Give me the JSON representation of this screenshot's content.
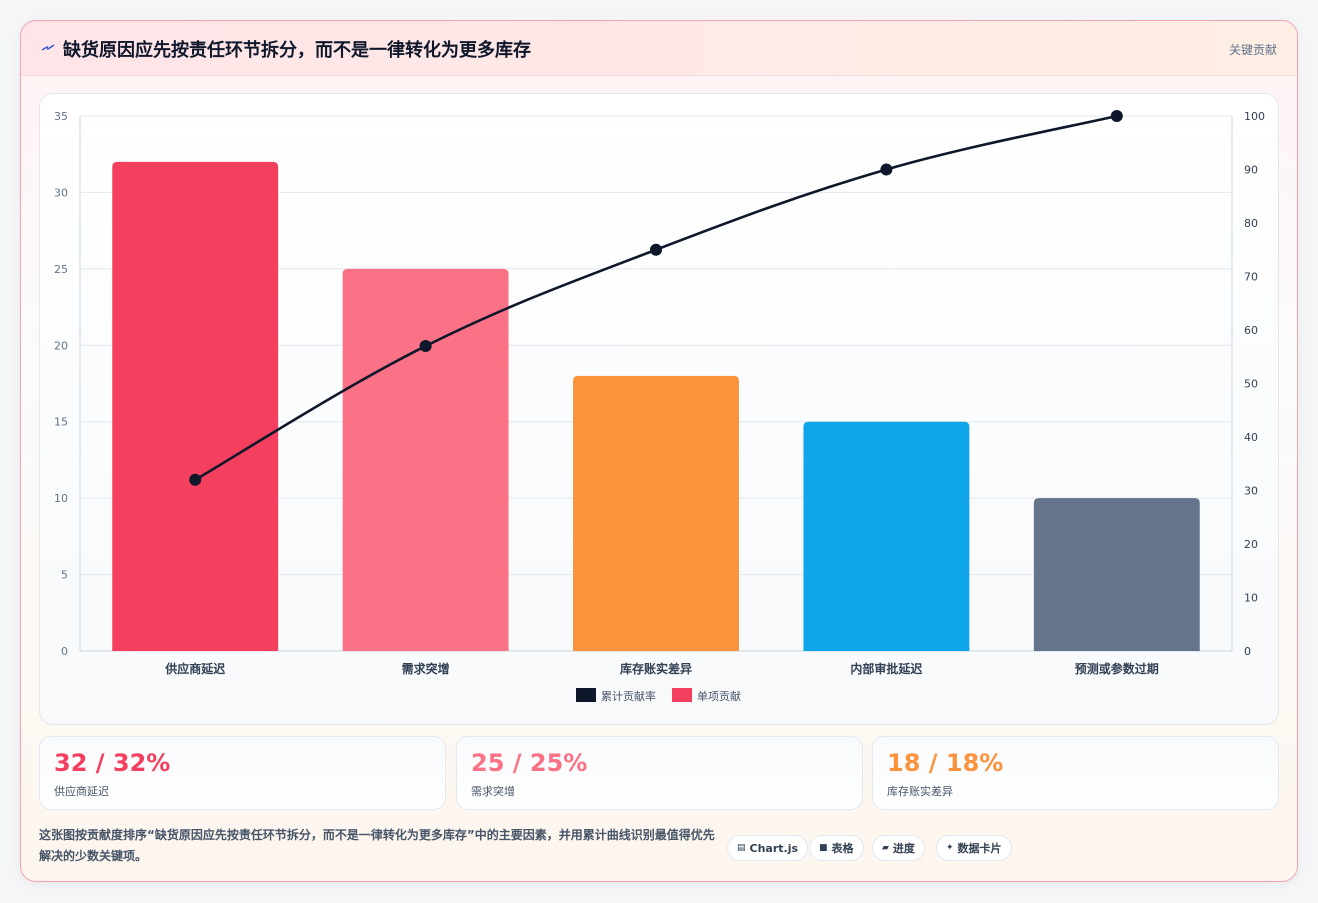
{
  "header": {
    "title": "缺货原因应先按责任环节拆分，而不是一律转化为更多库存",
    "tag": "关键贡献"
  },
  "colors": {
    "red": "#f43f5e",
    "pink": "#fb7185",
    "orange": "#fb923c",
    "sky": "#0ea5e9",
    "slate": "#64748b",
    "line": "#0f172a"
  },
  "chart_data": {
    "type": "bar",
    "categories": [
      "供应商延迟",
      "需求突增",
      "库存账实差异",
      "内部审批延迟",
      "预测或参数过期"
    ],
    "series": [
      {
        "name": "单项贡献",
        "type": "bar",
        "axis": "left",
        "values": [
          32,
          25,
          18,
          15,
          10
        ],
        "colors": [
          "#f43f5e",
          "#fb7185",
          "#fb923c",
          "#0ea5e9",
          "#64748b"
        ]
      },
      {
        "name": "累计贡献率",
        "type": "line",
        "axis": "right",
        "values": [
          32,
          57,
          75,
          90,
          100
        ],
        "color": "#0f172a"
      }
    ],
    "ylim": [
      0,
      35
    ],
    "y_ticks": [
      0,
      5,
      10,
      15,
      20,
      25,
      30,
      35
    ],
    "y2lim": [
      0,
      100
    ],
    "y2_ticks": [
      0,
      10,
      20,
      30,
      40,
      50,
      60,
      70,
      80,
      90,
      100
    ],
    "legend": [
      "累计贡献率",
      "单项贡献"
    ],
    "legend_position": "bottom",
    "grid": true
  },
  "stats": [
    {
      "value": "32 / 32%",
      "label": "供应商延迟",
      "color": "#f43f5e"
    },
    {
      "value": "25 / 25%",
      "label": "需求突增",
      "color": "#fb7185"
    },
    {
      "value": "18 / 18%",
      "label": "库存账实差异",
      "color": "#fb923c"
    }
  ],
  "description": "这张图按贡献度排序“缺货原因应先按责任环节拆分，而不是一律转化为更多库存”中的主要因素，并用累计曲线识别最值得优先解决的少数关键项。",
  "chips": [
    {
      "icon": "chart-icon",
      "label": "Chart.js"
    },
    {
      "icon": "table-icon",
      "label": "表格"
    },
    {
      "icon": "progress-icon",
      "label": "进度"
    },
    {
      "icon": "card-icon",
      "label": "数据卡片"
    }
  ]
}
